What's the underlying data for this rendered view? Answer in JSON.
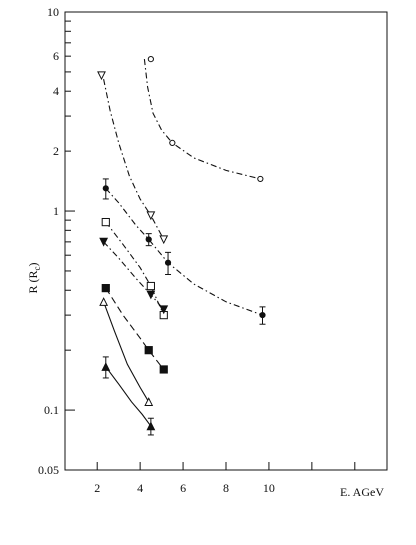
{
  "chart_data": {
    "type": "scatter",
    "title": "",
    "xlabel": "E. AGeV",
    "ylabel": "R (R",
    "ylabel_sub": "c",
    "ylabel_close": ")",
    "yscale": "log",
    "xlim": [
      0.5,
      15.5
    ],
    "ylim": [
      0.05,
      10
    ],
    "grid": false,
    "x_ticks": [
      2,
      4,
      6,
      8,
      10,
      12,
      14
    ],
    "x_tick_labels": [
      "2",
      "4",
      "6",
      "8",
      "10",
      "",
      ""
    ],
    "y_ticks": [
      0.05,
      0.1,
      0.2,
      0.3,
      0.4,
      0.5,
      0.6,
      0.7,
      0.8,
      0.9,
      1,
      2,
      3,
      4,
      5,
      6,
      7,
      8,
      9,
      10
    ],
    "y_tick_labels": [
      "0.05",
      "0.1",
      "",
      "",
      "",
      "",
      "",
      "",
      "",
      "",
      "1",
      "2",
      "",
      "4",
      "",
      "6",
      "",
      "",
      "",
      "10"
    ],
    "series": [
      {
        "marker": "open-circle",
        "line": "dash-dot",
        "points": [
          [
            4.5,
            5.8
          ],
          [
            5.5,
            2.2
          ],
          [
            9.6,
            1.45
          ]
        ],
        "curve": [
          [
            4.2,
            5.8
          ],
          [
            4.35,
            4.2
          ],
          [
            4.6,
            3.1
          ],
          [
            5.0,
            2.55
          ],
          [
            5.5,
            2.2
          ],
          [
            6.5,
            1.85
          ],
          [
            8.0,
            1.6
          ],
          [
            9.6,
            1.45
          ]
        ]
      },
      {
        "marker": "open-triangle-down",
        "line": "dash-dot",
        "points": [
          [
            2.2,
            4.8
          ],
          [
            4.5,
            0.95
          ],
          [
            5.1,
            0.72
          ]
        ],
        "curve": [
          [
            2.3,
            4.6
          ],
          [
            2.6,
            3.2
          ],
          [
            3.0,
            2.2
          ],
          [
            3.5,
            1.5
          ],
          [
            4.0,
            1.15
          ],
          [
            4.5,
            0.95
          ],
          [
            5.1,
            0.72
          ]
        ]
      },
      {
        "marker": "filled-circle",
        "line": "dash-dot",
        "points": [
          [
            2.4,
            1.3
          ],
          [
            4.4,
            0.72
          ],
          [
            5.3,
            0.55
          ],
          [
            9.7,
            0.3
          ]
        ],
        "errors": [
          0.15,
          0.05,
          0.07,
          0.03
        ],
        "curve": [
          [
            2.4,
            1.3
          ],
          [
            3.0,
            1.1
          ],
          [
            3.8,
            0.85
          ],
          [
            4.4,
            0.72
          ],
          [
            5.3,
            0.55
          ],
          [
            6.5,
            0.43
          ],
          [
            8.0,
            0.35
          ],
          [
            9.7,
            0.3
          ]
        ]
      },
      {
        "marker": "open-square",
        "line": "dash-dot",
        "points": [
          [
            2.4,
            0.88
          ],
          [
            4.5,
            0.42
          ],
          [
            5.1,
            0.3
          ]
        ],
        "curve": [
          [
            2.4,
            0.88
          ],
          [
            3.2,
            0.68
          ],
          [
            4.0,
            0.52
          ],
          [
            4.5,
            0.42
          ],
          [
            5.1,
            0.3
          ]
        ]
      },
      {
        "marker": "filled-triangle-down",
        "line": "dash-dot",
        "points": [
          [
            2.3,
            0.7
          ],
          [
            4.5,
            0.38
          ],
          [
            5.1,
            0.32
          ]
        ],
        "curve": [
          [
            2.3,
            0.7
          ],
          [
            3.0,
            0.58
          ],
          [
            3.8,
            0.46
          ],
          [
            4.5,
            0.38
          ],
          [
            5.1,
            0.32
          ]
        ]
      },
      {
        "marker": "filled-square",
        "line": "dashed",
        "points": [
          [
            2.4,
            0.41
          ],
          [
            4.4,
            0.2
          ],
          [
            5.1,
            0.16
          ]
        ],
        "curve": [
          [
            2.4,
            0.41
          ],
          [
            3.2,
            0.3
          ],
          [
            4.0,
            0.23
          ],
          [
            4.4,
            0.2
          ],
          [
            5.1,
            0.16
          ]
        ]
      },
      {
        "marker": "open-triangle-up",
        "line": "solid",
        "points": [
          [
            2.3,
            0.35
          ],
          [
            4.4,
            0.11
          ]
        ],
        "curve": [
          [
            2.3,
            0.35
          ],
          [
            2.8,
            0.25
          ],
          [
            3.4,
            0.17
          ],
          [
            4.0,
            0.13
          ],
          [
            4.4,
            0.11
          ]
        ]
      },
      {
        "marker": "filled-triangle-up",
        "line": "solid",
        "points": [
          [
            2.4,
            0.165
          ],
          [
            4.5,
            0.083
          ]
        ],
        "errors": [
          0.02,
          0.008
        ],
        "curve": [
          [
            2.4,
            0.165
          ],
          [
            3.0,
            0.135
          ],
          [
            3.6,
            0.11
          ],
          [
            4.1,
            0.095
          ],
          [
            4.5,
            0.083
          ]
        ]
      }
    ]
  }
}
